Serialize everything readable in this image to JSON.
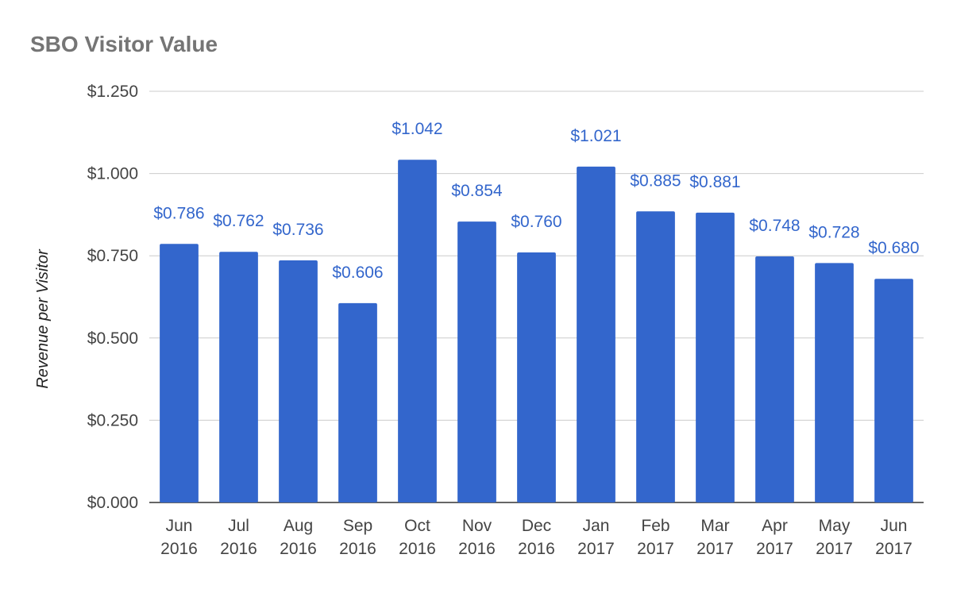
{
  "chart_data": {
    "type": "bar",
    "title": "SBO Visitor Value",
    "xlabel": "",
    "ylabel": "Revenue per Visitor",
    "categories": [
      [
        "Jun",
        "2016"
      ],
      [
        "Jul",
        "2016"
      ],
      [
        "Aug",
        "2016"
      ],
      [
        "Sep",
        "2016"
      ],
      [
        "Oct",
        "2016"
      ],
      [
        "Nov",
        "2016"
      ],
      [
        "Dec",
        "2016"
      ],
      [
        "Jan",
        "2017"
      ],
      [
        "Feb",
        "2017"
      ],
      [
        "Mar",
        "2017"
      ],
      [
        "Apr",
        "2017"
      ],
      [
        "May",
        "2017"
      ],
      [
        "Jun",
        "2017"
      ]
    ],
    "values": [
      0.786,
      0.762,
      0.736,
      0.606,
      1.042,
      0.854,
      0.76,
      1.021,
      0.885,
      0.881,
      0.748,
      0.728,
      0.68
    ],
    "data_labels": [
      "$0.786",
      "$0.762",
      "$0.736",
      "$0.606",
      "$1.042",
      "$0.854",
      "$0.760",
      "$1.021",
      "$0.885",
      "$0.881",
      "$0.748",
      "$0.728",
      "$0.680"
    ],
    "ylim": [
      0,
      1.25
    ],
    "yticks": [
      0,
      0.25,
      0.5,
      0.75,
      1.0,
      1.25
    ],
    "ytick_labels": [
      "$0.000",
      "$0.250",
      "$0.500",
      "$0.750",
      "$1.000",
      "$1.250"
    ],
    "grid": true,
    "legend": "none",
    "colors": {
      "bar": "#3366cc",
      "data_label": "#3366cc"
    }
  }
}
